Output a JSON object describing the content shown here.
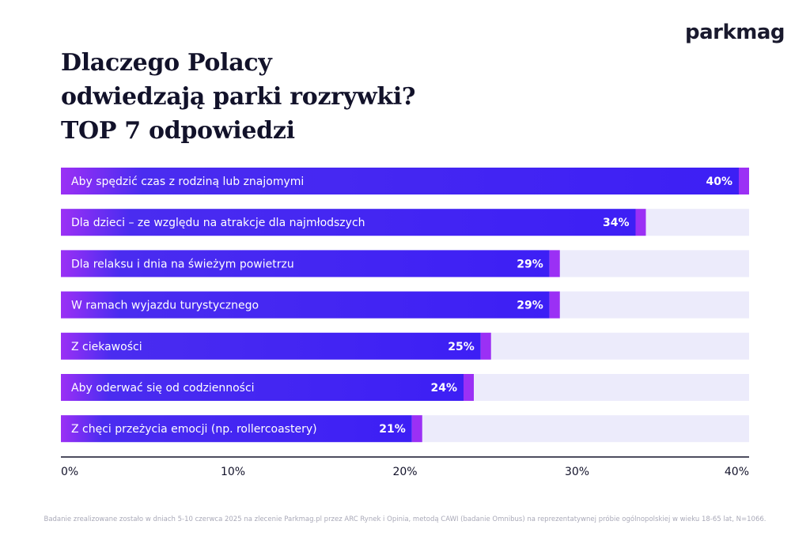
{
  "brand": {
    "name_part1": "park",
    "name_part2": "mag"
  },
  "title_lines": [
    "Dlaczego Polacy",
    "odwiedzają parki rozrywki?",
    "TOP 7 odpowiedzi"
  ],
  "colors": {
    "bar_start": "#4a2cf0",
    "bar_end": "#3d1ff5",
    "bar_cap": "#9b30f5",
    "track": "#ecebfb",
    "text_light": "#ffffff",
    "axis": "#12122a"
  },
  "chart_data": {
    "type": "bar",
    "orientation": "horizontal",
    "categories": [
      "Aby spędzić czas z rodziną lub znajomymi",
      "Dla dzieci – ze względu na atrakcje dla najmłodszych",
      "Dla relaksu i dnia na świeżym powietrzu",
      "W ramach wyjazdu turystycznego",
      "Z ciekawości",
      "Aby oderwać się od codzienności",
      "Z chęci przeżycia emocji (np. rollercoastery)"
    ],
    "values": [
      40,
      34,
      29,
      29,
      25,
      24,
      21
    ],
    "data_labels": [
      "40%",
      "34%",
      "29%",
      "29%",
      "25%",
      "24%",
      "21%"
    ],
    "xlim": [
      0,
      40
    ],
    "xticks": [
      0,
      10,
      20,
      30,
      40
    ],
    "xtick_labels": [
      "0%",
      "10%",
      "20%",
      "30%",
      "40%"
    ],
    "grid": false
  },
  "footnote": "Badanie zrealizowane zostało w dniach 5-10 czerwca 2025 na zlecenie Parkmag.pl przez ARC Rynek i Opinia, metodą CAWI (badanie Omnibus) na reprezentatywnej próbie ogólnopolskiej w wieku 18-65 lat, N=1066."
}
